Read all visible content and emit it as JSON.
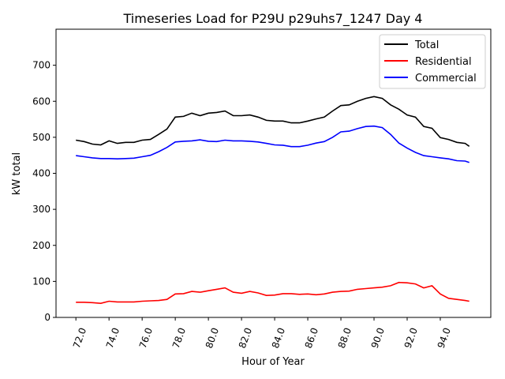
{
  "chart_data": {
    "type": "line",
    "title": "Timeseries Load for P29U p29uhs7_1247  Day 4",
    "xlabel": "Hour of Year",
    "ylabel": "kW total",
    "xlim": [
      70.8,
      97.05
    ],
    "ylim": [
      0,
      800
    ],
    "xticks": [
      "72.0",
      "74.0",
      "76.0",
      "78.0",
      "80.0",
      "82.0",
      "84.0",
      "86.0",
      "88.0",
      "90.0",
      "92.0",
      "94.0"
    ],
    "yticks": [
      "0",
      "100",
      "200",
      "300",
      "400",
      "500",
      "600",
      "700"
    ],
    "legend_position": "top-right",
    "grid": false,
    "x": [
      72,
      72.5,
      73,
      73.5,
      74,
      74.5,
      75,
      75.5,
      76,
      76.5,
      77,
      77.5,
      78,
      78.5,
      79,
      79.5,
      80,
      80.5,
      81,
      81.5,
      82,
      82.5,
      83,
      83.5,
      84,
      84.5,
      85,
      85.5,
      86,
      86.5,
      87,
      87.5,
      88,
      88.5,
      89,
      89.5,
      90,
      90.5,
      91,
      91.5,
      92,
      92.5,
      93,
      93.5,
      94,
      94.5,
      95,
      95.5,
      95.75
    ],
    "series": [
      {
        "name": "Total",
        "color": "#000000",
        "values": [
          492,
          488,
          481,
          479,
          490,
          483,
          486,
          486,
          492,
          494,
          508,
          523,
          556,
          558,
          567,
          560,
          567,
          569,
          573,
          560,
          560,
          562,
          556,
          547,
          545,
          545,
          540,
          540,
          545,
          551,
          556,
          573,
          588,
          590,
          600,
          608,
          613,
          608,
          590,
          578,
          562,
          556,
          530,
          525,
          499,
          494,
          486,
          483,
          475
        ]
      },
      {
        "name": "Residential",
        "color": "#ff0000",
        "values": [
          42,
          42,
          41,
          39,
          45,
          43,
          43,
          43,
          45,
          46,
          47,
          50,
          65,
          66,
          72,
          70,
          74,
          78,
          82,
          70,
          67,
          72,
          68,
          61,
          62,
          66,
          66,
          64,
          65,
          63,
          65,
          70,
          72,
          73,
          78,
          80,
          82,
          84,
          88,
          97,
          96,
          93,
          82,
          88,
          65,
          53,
          50,
          47,
          45
        ]
      },
      {
        "name": "Commercial",
        "color": "#0000ff",
        "values": [
          449,
          446,
          443,
          441,
          441,
          440,
          441,
          442,
          446,
          450,
          460,
          472,
          487,
          489,
          490,
          493,
          489,
          488,
          492,
          490,
          490,
          489,
          487,
          483,
          479,
          478,
          474,
          474,
          478,
          484,
          488,
          500,
          515,
          517,
          524,
          530,
          531,
          527,
          508,
          484,
          470,
          458,
          449,
          446,
          443,
          440,
          435,
          434,
          430
        ]
      }
    ]
  }
}
